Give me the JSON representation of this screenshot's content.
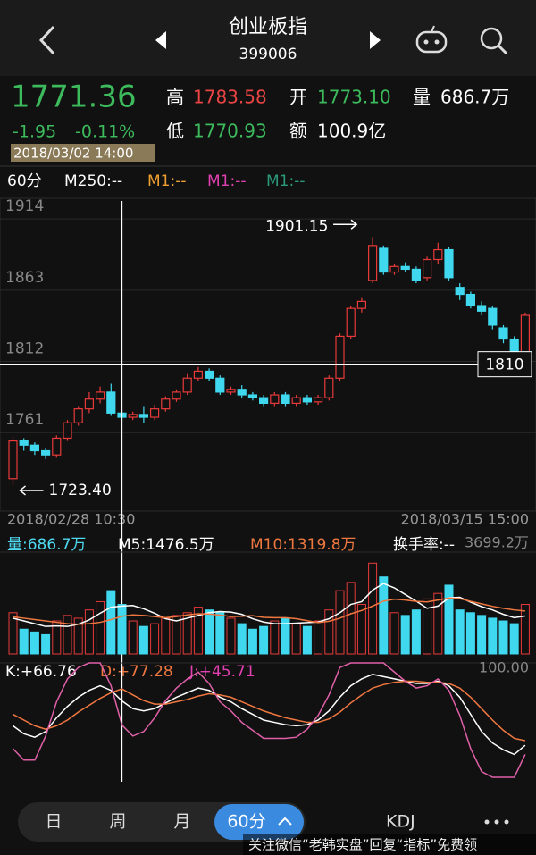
{
  "header": {
    "title": "创业板指",
    "code": "399006"
  },
  "quote": {
    "price": "1771.36",
    "change": "-1.95",
    "change_pct": "-0.11%",
    "high_label": "高",
    "high": "1783.58",
    "open_label": "开",
    "open": "1773.10",
    "vol_label": "量",
    "vol": "686.7万",
    "low_label": "低",
    "low": "1770.93",
    "amount_label": "额",
    "amount": "100.9亿",
    "time": "2018/03/02 14:00"
  },
  "indicators": {
    "period": "60分",
    "m250": "M250:--",
    "m1a": "M1:--",
    "m1b": "M1:--",
    "m1c": "M1:--"
  },
  "kline": {
    "ylim": [
      1708,
      1925
    ],
    "yticks": [
      1914,
      1863,
      1812,
      1761
    ],
    "open": [
      1728,
      1755,
      1752,
      1748,
      1745,
      1757,
      1768,
      1778,
      1785,
      1790,
      1775,
      1772,
      1774,
      1772,
      1778,
      1785,
      1790,
      1800,
      1805,
      1800,
      1790,
      1792,
      1788,
      1786,
      1782,
      1788,
      1782,
      1786,
      1783,
      1786,
      1800,
      1830,
      1850,
      1870,
      1893,
      1876,
      1880,
      1878,
      1872,
      1885,
      1892,
      1865,
      1860,
      1852,
      1850,
      1836,
      1828,
      1815
    ],
    "close": [
      1755,
      1752,
      1748,
      1745,
      1757,
      1768,
      1778,
      1785,
      1790,
      1775,
      1772,
      1774,
      1772,
      1778,
      1785,
      1790,
      1800,
      1805,
      1800,
      1790,
      1792,
      1788,
      1786,
      1782,
      1788,
      1782,
      1786,
      1783,
      1786,
      1800,
      1830,
      1850,
      1855,
      1895,
      1876,
      1880,
      1878,
      1870,
      1885,
      1892,
      1872,
      1860,
      1852,
      1848,
      1838,
      1828,
      1818,
      1845
    ],
    "high": [
      1758,
      1757,
      1754,
      1750,
      1759,
      1770,
      1780,
      1790,
      1794,
      1796,
      1777,
      1776,
      1780,
      1781,
      1787,
      1792,
      1803,
      1808,
      1807,
      1802,
      1794,
      1795,
      1790,
      1788,
      1790,
      1790,
      1788,
      1788,
      1788,
      1802,
      1832,
      1852,
      1858,
      1901.15,
      1895,
      1882,
      1883,
      1880,
      1887,
      1897,
      1894,
      1868,
      1862,
      1855,
      1852,
      1838,
      1830,
      1847
    ],
    "low": [
      1723.4,
      1748,
      1745,
      1742,
      1743,
      1755,
      1766,
      1775,
      1782,
      1773,
      1770,
      1770,
      1768,
      1770,
      1776,
      1783,
      1788,
      1798,
      1798,
      1788,
      1788,
      1786,
      1784,
      1780,
      1780,
      1780,
      1780,
      1781,
      1781,
      1784,
      1798,
      1828,
      1847,
      1868,
      1874,
      1874,
      1876,
      1868,
      1870,
      1882,
      1870,
      1856,
      1850,
      1845,
      1835,
      1825,
      1815,
      1812
    ],
    "high_note": "1901.15",
    "low_note": "1723.40",
    "crosshair": 1810,
    "start_time": "2018/02/28 10:30",
    "end_time": "2018/03/15 15:00"
  },
  "volume": {
    "label": "量:686.7万",
    "ma5_label": "M5:1476.5万",
    "ma10_label": "M10:1319.8万",
    "turnover": "换手率:--",
    "ylim": [
      0,
      3699.2
    ],
    "yticks": [
      {
        "value": 3699.2,
        "label": "3699.2万"
      }
    ],
    "values": [
      1500,
      900,
      800,
      700,
      1200,
      1400,
      1300,
      1600,
      1900,
      2300,
      1800,
      1200,
      1000,
      1100,
      1300,
      1400,
      1500,
      1700,
      1600,
      1500,
      1300,
      1100,
      900,
      1000,
      1200,
      1300,
      1100,
      1000,
      1200,
      1600,
      2300,
      2600,
      1800,
      3300,
      2800,
      1500,
      1400,
      1600,
      2000,
      2200,
      2500,
      1600,
      1500,
      1400,
      1300,
      1200,
      1100,
      1800
    ],
    "ma5": [
      1300,
      1200,
      1100,
      1000,
      1020,
      1000,
      1080,
      1240,
      1480,
      1700,
      1740,
      1760,
      1640,
      1480,
      1280,
      1200,
      1300,
      1400,
      1500,
      1540,
      1520,
      1440,
      1280,
      1160,
      1100,
      1100,
      1120,
      1140,
      1160,
      1280,
      1500,
      1800,
      1900,
      2320,
      2560,
      2400,
      2160,
      1920,
      1660,
      1740,
      2040,
      2060,
      1880,
      1720,
      1600,
      1440,
      1320,
      1380
    ],
    "ma10": [
      1350,
      1300,
      1250,
      1200,
      1150,
      1100,
      1080,
      1100,
      1150,
      1250,
      1370,
      1420,
      1400,
      1360,
      1320,
      1360,
      1420,
      1460,
      1450,
      1410,
      1360,
      1370,
      1390,
      1330,
      1320,
      1320,
      1280,
      1210,
      1140,
      1190,
      1300,
      1460,
      1580,
      1740,
      1920,
      1990,
      1960,
      1910,
      1890,
      1960,
      2030,
      2010,
      1910,
      1820,
      1730,
      1660,
      1600,
      1560
    ]
  },
  "kdj": {
    "k_label": "K:+66.76",
    "d_label": "D:+77.28",
    "j_label": "J:+45.71",
    "ylim": [
      0,
      100
    ],
    "yticks": [
      {
        "value": 100,
        "label": "100.00"
      }
    ],
    "k": [
      45,
      38,
      35,
      40,
      52,
      62,
      70,
      76,
      80,
      76,
      66.76,
      60,
      58,
      60,
      65,
      70,
      74,
      78,
      76,
      70,
      66,
      60,
      55,
      50,
      48,
      46,
      45,
      46,
      50,
      58,
      70,
      80,
      86,
      90,
      88,
      86,
      84,
      82,
      82,
      84,
      80,
      70,
      55,
      40,
      30,
      24,
      20,
      28
    ],
    "d": [
      55,
      50,
      45,
      42,
      45,
      50,
      57,
      63,
      69,
      74,
      77.28,
      72,
      67,
      64,
      64,
      66,
      68,
      71,
      73,
      72,
      70,
      66,
      62,
      58,
      55,
      52,
      50,
      48,
      48,
      51,
      57,
      65,
      72,
      78,
      81,
      83,
      84,
      84,
      83,
      83,
      82,
      78,
      70,
      60,
      50,
      41,
      34,
      32
    ],
    "j": [
      25,
      15,
      15,
      36,
      66,
      86,
      96,
      100,
      100,
      80,
      45.71,
      36,
      40,
      52,
      67,
      78,
      86,
      92,
      82,
      66,
      58,
      48,
      41,
      34,
      34,
      34,
      35,
      42,
      54,
      72,
      96,
      100,
      100,
      100,
      100,
      92,
      84,
      78,
      80,
      86,
      76,
      54,
      25,
      5,
      0,
      0,
      0,
      20
    ]
  },
  "footer": {
    "tabs": [
      "日",
      "周",
      "月",
      "60分"
    ],
    "indicator": "KDJ",
    "watermark": "关注微信“老韩实盘”回复“指标”免费领"
  }
}
